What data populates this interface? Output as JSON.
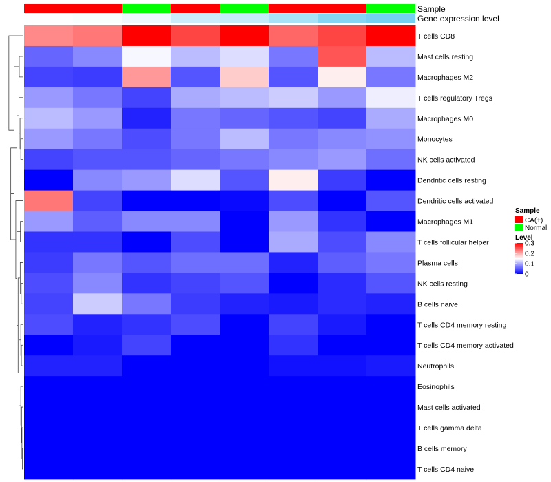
{
  "chart_data": {
    "type": "heatmap",
    "annotation_tracks": [
      {
        "label": "Sample",
        "values": [
          "CA(+)",
          "CA(+)",
          "Normal",
          "CA(+)",
          "Normal",
          "CA(+)",
          "CA(+)",
          "Normal"
        ]
      },
      {
        "label": "Gene expression level",
        "values": [
          0.02,
          0.05,
          0.12,
          0.35,
          0.4,
          0.6,
          0.85,
          0.95
        ]
      }
    ],
    "rows": [
      "T cells CD8",
      "Mast cells resting",
      "Macrophages M2",
      "T cells regulatory  Tregs",
      "Macrophages M0",
      "Monocytes",
      "NK cells activated",
      "Dendritic cells resting",
      "Dendritic cells activated",
      "Macrophages M1",
      "T cells follicular helper",
      "Plasma cells",
      "NK cells resting",
      "B cells naive",
      "T cells CD4 memory resting",
      "T cells CD4 memory activated",
      "Neutrophils",
      "Eosinophils",
      "Mast cells activated",
      "T cells gamma delta",
      "B cells memory",
      "T cells CD4 naive"
    ],
    "values": [
      [
        0.22,
        0.23,
        0.3,
        0.26,
        0.3,
        0.24,
        0.26,
        0.3
      ],
      [
        0.06,
        0.08,
        0.145,
        0.11,
        0.13,
        0.07,
        0.25,
        0.11
      ],
      [
        0.04,
        0.035,
        0.21,
        0.05,
        0.18,
        0.05,
        0.16,
        0.07
      ],
      [
        0.09,
        0.07,
        0.04,
        0.1,
        0.11,
        0.12,
        0.09,
        0.14
      ],
      [
        0.11,
        0.09,
        0.02,
        0.07,
        0.06,
        0.05,
        0.04,
        0.1
      ],
      [
        0.09,
        0.07,
        0.045,
        0.07,
        0.11,
        0.07,
        0.08,
        0.085
      ],
      [
        0.04,
        0.05,
        0.05,
        0.06,
        0.07,
        0.08,
        0.09,
        0.065
      ],
      [
        0.0,
        0.08,
        0.09,
        0.13,
        0.05,
        0.16,
        0.035,
        0.0
      ],
      [
        0.23,
        0.04,
        0.0,
        0.0,
        0.005,
        0.045,
        0.0,
        0.05
      ],
      [
        0.09,
        0.055,
        0.08,
        0.08,
        0.0,
        0.09,
        0.03,
        0.0
      ],
      [
        0.03,
        0.03,
        0.0,
        0.045,
        0.0,
        0.1,
        0.045,
        0.08
      ],
      [
        0.035,
        0.07,
        0.05,
        0.065,
        0.065,
        0.02,
        0.055,
        0.07
      ],
      [
        0.045,
        0.08,
        0.03,
        0.04,
        0.05,
        0.0,
        0.025,
        0.05
      ],
      [
        0.04,
        0.12,
        0.07,
        0.035,
        0.02,
        0.015,
        0.025,
        0.02
      ],
      [
        0.045,
        0.02,
        0.03,
        0.045,
        0.0,
        0.04,
        0.015,
        0.0
      ],
      [
        0.0,
        0.015,
        0.04,
        0.0,
        0.0,
        0.03,
        0.0,
        0.0
      ],
      [
        0.02,
        0.02,
        0.0,
        0.0,
        0.0,
        0.01,
        0.01,
        0.015
      ],
      [
        0.0,
        0.0,
        0.0,
        0.0,
        0.0,
        0.0,
        0.0,
        0.0
      ],
      [
        0.0,
        0.0,
        0.0,
        0.0,
        0.0,
        0.0,
        0.0,
        0.0
      ],
      [
        0.0,
        0.0,
        0.0,
        0.0,
        0.0,
        0.0,
        0.0,
        0.0
      ],
      [
        0.0,
        0.0,
        0.0,
        0.0,
        0.0,
        0.0,
        0.0,
        0.0
      ],
      [
        0.0,
        0.0,
        0.0,
        0.0,
        0.0,
        0.0,
        0.0,
        0.0
      ]
    ],
    "color_scale": {
      "low": "#0000ff",
      "mid": "#ffffff",
      "high": "#ff0000",
      "mid_value": 0.15,
      "range": [
        0,
        0.3
      ]
    },
    "dendrogram": {
      "side": "left",
      "clusters": [
        [
          [
            0
          ],
          [
            1,
            2,
            3,
            4,
            5,
            6,
            7,
            8,
            9,
            10,
            11,
            12,
            13,
            14,
            15,
            16,
            17,
            18,
            19,
            20,
            21
          ]
        ],
        [
          [
            1,
            2
          ],
          [
            3,
            4,
            5,
            6,
            7,
            8,
            9,
            10,
            11,
            12,
            13,
            14,
            15,
            16,
            17,
            18,
            19,
            20,
            21
          ]
        ],
        [
          [
            1
          ],
          [
            2
          ]
        ],
        [
          [
            3,
            4,
            5,
            6,
            7
          ],
          [
            8,
            9,
            10,
            11,
            12,
            13,
            14,
            15,
            16,
            17,
            18,
            19,
            20,
            21
          ]
        ],
        [
          [
            3,
            4,
            5,
            6
          ],
          [
            7
          ]
        ],
        [
          [
            3
          ],
          [
            4,
            5,
            6
          ]
        ],
        [
          [
            4
          ],
          [
            5,
            6
          ]
        ],
        [
          [
            5
          ],
          [
            6
          ]
        ],
        [
          [
            8
          ],
          [
            9,
            10,
            11,
            12,
            13,
            14,
            15,
            16,
            17,
            18,
            19,
            20,
            21
          ]
        ],
        [
          [
            9,
            10
          ],
          [
            11,
            12,
            13,
            14,
            15,
            16,
            17,
            18,
            19,
            20,
            21
          ]
        ],
        [
          [
            9
          ],
          [
            10
          ]
        ],
        [
          [
            11,
            12,
            13
          ],
          [
            14,
            15,
            16,
            17,
            18,
            19,
            20,
            21
          ]
        ],
        [
          [
            11
          ],
          [
            12,
            13
          ]
        ],
        [
          [
            12
          ],
          [
            13
          ]
        ],
        [
          [
            14,
            15,
            16
          ],
          [
            17,
            18,
            19,
            20,
            21
          ]
        ],
        [
          [
            14
          ],
          [
            15,
            16
          ]
        ],
        [
          [
            15
          ],
          [
            16
          ]
        ],
        [
          [
            17
          ],
          [
            18,
            19,
            20,
            21
          ]
        ],
        [
          [
            18
          ],
          [
            19,
            20,
            21
          ]
        ],
        [
          [
            19
          ],
          [
            20,
            21
          ]
        ],
        [
          [
            20
          ],
          [
            21
          ]
        ]
      ],
      "heights": [
        0.72,
        0.45,
        0.18,
        0.62,
        0.3,
        0.2,
        0.14,
        0.1,
        0.36,
        0.3,
        0.12,
        0.24,
        0.13,
        0.08,
        0.2,
        0.1,
        0.07,
        0.1,
        0.06,
        0.04,
        0.02
      ]
    },
    "legends": [
      {
        "title": "Sample",
        "entries": [
          {
            "label": "CA(+)",
            "color": "#ff0000"
          },
          {
            "label": "Normal",
            "color": "#00ff00"
          }
        ]
      },
      {
        "title": "Level",
        "ticks": [
          0.3,
          0.2,
          0.1,
          0
        ],
        "tick_labels": [
          "0.3",
          "0.2",
          "0.1",
          "0"
        ]
      }
    ],
    "colors": {
      "sample_palette": {
        "CA(+)": "#ff0000",
        "Normal": "#00ff00"
      },
      "expression_low": "#ffffff",
      "expression_high": "#6ecff0"
    },
    "title": "",
    "xlabel": "",
    "ylabel": ""
  }
}
